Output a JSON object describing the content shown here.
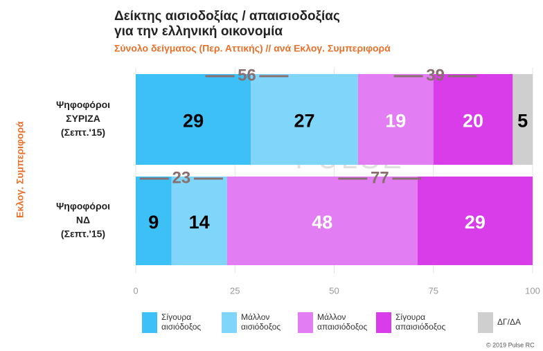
{
  "chart_data": {
    "type": "stacked-barh",
    "title": [
      "Δείκτης αισιοδοξίας / απαισιοδοξίας",
      "για την ελληνική οικονομία"
    ],
    "subtitle": "Σύνολο δείγματος (Περ. Αττικής) // ανά Εκλογ. Συμπεριφορά",
    "ylabel": "Εκλογ. Συμπεριφορά",
    "watermark": "PULSE",
    "watermark_sub": "RESEARCH & CONSULTING",
    "footer": "© 2019 Pulse RC",
    "categories": [
      [
        "Ψηφοφόροι",
        "ΣΥΡΙΖΑ",
        "(Σεπτ.'15)"
      ],
      [
        "Ψηφοφόροι",
        "ΝΔ",
        "(Σεπτ.'15)"
      ]
    ],
    "series": [
      {
        "name": [
          "Σίγουρα",
          "αισιόδοξος"
        ],
        "color": "#3cc0f6",
        "label_color": "#000000",
        "values": [
          29,
          9
        ]
      },
      {
        "name": [
          "Μάλλον",
          "αισιόδοξος"
        ],
        "color": "#80d5fb",
        "label_color": "#000000",
        "values": [
          27,
          14
        ]
      },
      {
        "name": [
          "Μάλλον",
          "απαισιόδοξος"
        ],
        "color": "#e27df3",
        "label_color": "#ffffff",
        "values": [
          19,
          48
        ]
      },
      {
        "name": [
          "Σίγουρα",
          "απαισιόδοξος"
        ],
        "color": "#d83de9",
        "label_color": "#ffffff",
        "values": [
          20,
          29
        ]
      },
      {
        "name": [
          "ΔΓ/ΔΑ"
        ],
        "color": "#cfcfcf",
        "label_color": "#000000",
        "values": [
          5,
          null
        ]
      }
    ],
    "optimism_totals": [
      56,
      23
    ],
    "pessimism_totals": [
      39,
      77
    ],
    "xlim": [
      0,
      100
    ],
    "xticks": [
      0,
      25,
      50,
      75,
      100
    ],
    "grid": true
  }
}
